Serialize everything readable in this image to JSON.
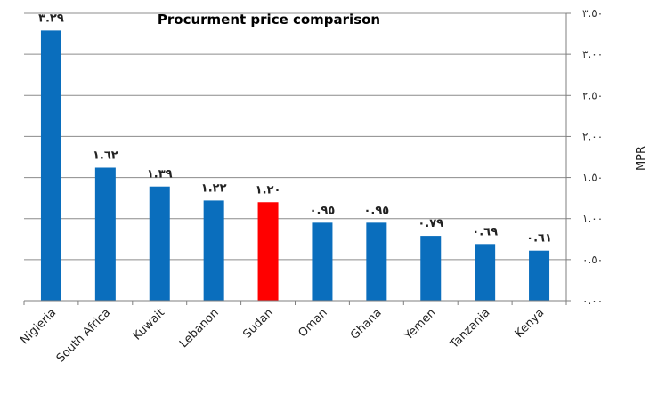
{
  "chart_data": {
    "type": "bar",
    "title": "Procurment price comparison",
    "ylabel": "MPR",
    "xlabel": "",
    "categories": [
      "Nigieria",
      "South Africa",
      "Kuwait",
      "Lebanon",
      "Sudan",
      "Oman",
      "Ghana",
      "Yemen",
      "Tanzania",
      "Kenya"
    ],
    "values": [
      3.29,
      1.62,
      1.39,
      1.22,
      1.2,
      0.95,
      0.95,
      0.79,
      0.69,
      0.61
    ],
    "data_labels": [
      "٣.٢٩",
      "١.٦٢",
      "١.٣٩",
      "١.٢٢",
      "١.٢٠",
      "٠.٩٥",
      "٠.٩٥",
      "٠.٧٩",
      "٠.٦٩",
      "٠.٦١"
    ],
    "ylim": [
      0,
      3.5
    ],
    "yticks": [
      0,
      0.5,
      1,
      1.5,
      2,
      2.5,
      3,
      3.5
    ],
    "ytick_labels": [
      "٠.٠٠",
      "٠.٥٠",
      "١.٠٠",
      "١.٥٠",
      "٢.٠٠",
      "٢.٥٠",
      "٣.٠٠",
      "٣.٥٠"
    ],
    "y_axis_side": "right",
    "grid": true,
    "colors": {
      "bar": "#0a6ebd",
      "highlight": "#ff0000",
      "highlight_category": "Sudan",
      "grid": "#8c8c8c"
    }
  }
}
